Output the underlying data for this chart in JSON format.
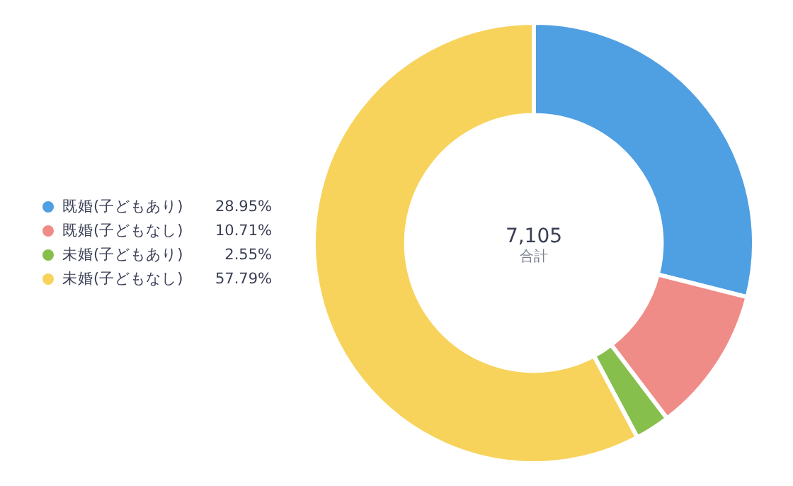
{
  "chart_data": {
    "type": "donut",
    "categories": [
      "既婚(子どもあり)",
      "既婚(子どもなし)",
      "未婚(子どもあり)",
      "未婚(子どもなし)"
    ],
    "values": [
      28.95,
      10.71,
      2.55,
      57.79
    ],
    "value_labels": [
      "28.95%",
      "10.71%",
      "2.55%",
      "57.79%"
    ],
    "colors": [
      "#4f9fe3",
      "#f08c88",
      "#86bf4c",
      "#f7d35c"
    ],
    "annotations": [
      "7,105",
      "合計"
    ],
    "legend": "left"
  }
}
